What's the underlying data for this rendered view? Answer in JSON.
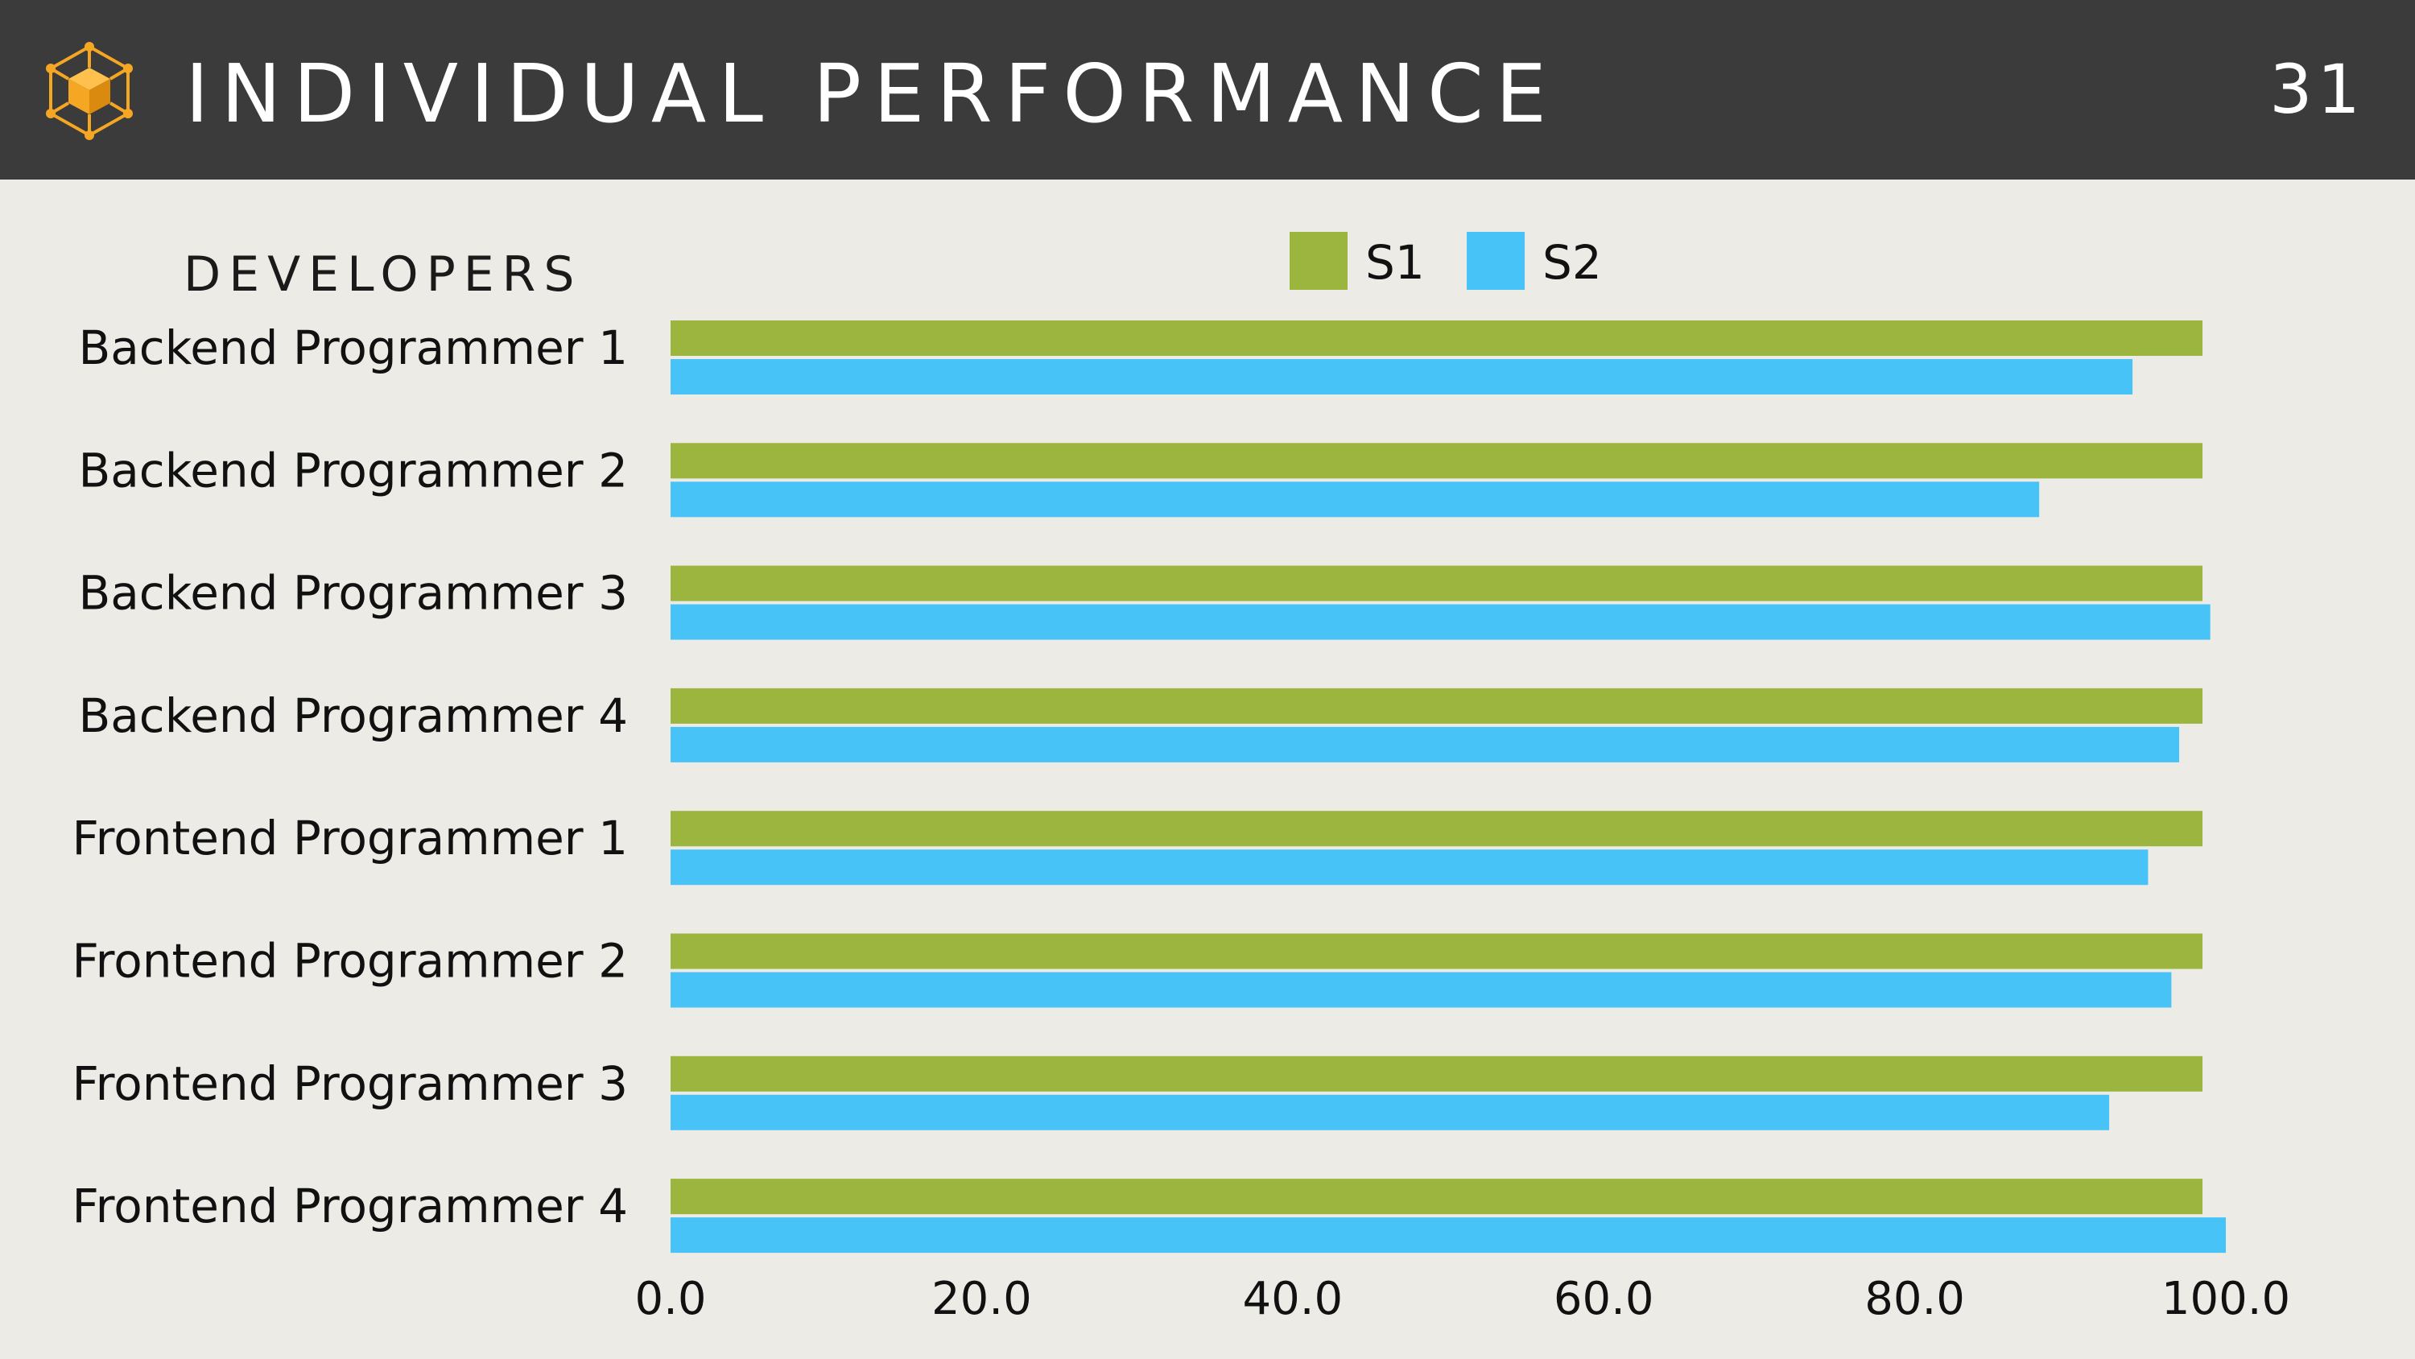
{
  "header": {
    "title": "INDIVIDUAL PERFORMANCE",
    "page_number": "31",
    "logo_icon": "cube-network-icon"
  },
  "colors": {
    "header_bg": "#3b3b3b",
    "background": "#ecebe6",
    "logo": "#f5a623",
    "s1": "#9bb53e",
    "s2": "#48c3f8"
  },
  "chart_data": {
    "type": "bar",
    "orientation": "horizontal",
    "ylabel": "DEVELOPERS",
    "categories": [
      "Backend Programmer 1",
      "Backend Programmer 2",
      "Backend Programmer 3",
      "Backend Programmer 4",
      "Frontend Programmer 1",
      "Frontend Programmer 2",
      "Frontend Programmer 3",
      "Frontend Programmer 4"
    ],
    "series": [
      {
        "name": "S1",
        "color": "#9bb53e",
        "values": [
          98.5,
          98.5,
          98.5,
          98.5,
          98.5,
          98.5,
          98.5,
          98.5
        ]
      },
      {
        "name": "S2",
        "color": "#48c3f8",
        "values": [
          94.0,
          88.0,
          99.0,
          97.0,
          95.0,
          96.5,
          92.5,
          100.0
        ]
      }
    ],
    "xlim": [
      0,
      100
    ],
    "x_ticks": [
      "0.0",
      "20.0",
      "40.0",
      "60.0",
      "80.0",
      "100.0"
    ],
    "legend": "top-center",
    "grid": false
  }
}
